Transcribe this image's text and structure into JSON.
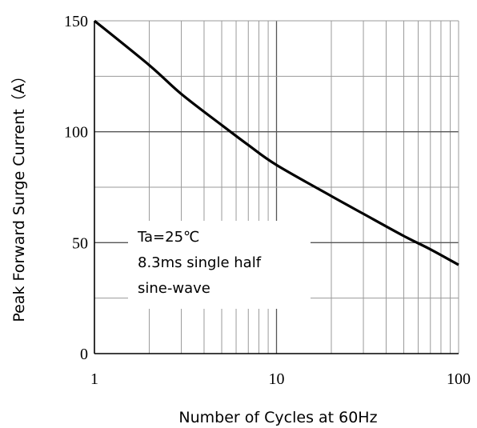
{
  "chart_data": {
    "type": "line",
    "xlabel": "Number of Cycles at 60Hz",
    "ylabel": "Peak Forward Surge Current（A）",
    "x_scale": "log",
    "xlim": [
      1,
      100
    ],
    "ylim": [
      0,
      150
    ],
    "x_ticks": [
      "1",
      "10",
      "100"
    ],
    "y_ticks": [
      "150",
      "100",
      "50",
      "0"
    ],
    "grid": true,
    "annotation": {
      "lines": [
        "Ta=25℃",
        "8.3ms single half",
        "sine-wave"
      ]
    },
    "series": [
      {
        "x": [
          1,
          2,
          3,
          5,
          7,
          10,
          20,
          30,
          50,
          70,
          100
        ],
        "y": [
          150,
          130,
          117,
          103,
          94,
          85,
          71,
          63,
          53,
          47,
          40
        ]
      }
    ],
    "colors": {
      "line": "#000000",
      "grid": "#9a9a9a",
      "axis": "#000000"
    }
  }
}
